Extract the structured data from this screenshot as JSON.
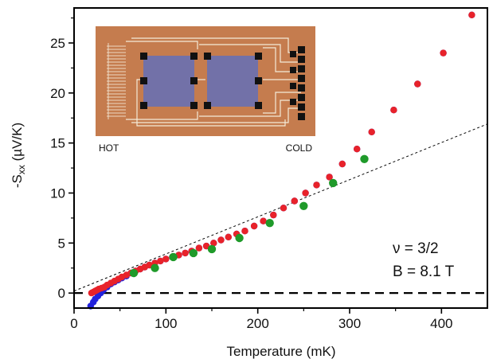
{
  "chart_data": {
    "type": "scatter",
    "xlabel": "Temperature (mK)",
    "ylabel_main": "-S",
    "ylabel_sub": "xx",
    "ylabel_unit": " (µV/K)",
    "xlim": [
      0,
      450
    ],
    "ylim": [
      -1.5,
      28.5
    ],
    "xticks": [
      0,
      100,
      200,
      300,
      400
    ],
    "yticks": [
      0,
      5,
      10,
      15,
      20,
      25
    ],
    "annotations": {
      "nu": "ν = 3/2",
      "field": "B = 8.1 T"
    },
    "inset": {
      "hot_label": "HOT",
      "cold_label": "COLD",
      "colors": {
        "substrate": "#c57c4e",
        "mesa": "#7271a8",
        "contact": "#111111",
        "lead": "#f4ead8"
      }
    },
    "dashed_zero_line": {
      "y": 0
    },
    "linear_fit": {
      "x0": 0,
      "y0": 0.2,
      "x1": 450,
      "y1": 16.9
    },
    "series": [
      {
        "color": "#2222dd",
        "x": [
          18,
          21,
          23,
          26,
          29,
          32,
          36,
          40,
          44,
          48,
          52,
          57,
          62,
          67,
          72,
          77,
          82,
          88,
          94,
          100,
          107,
          114,
          121,
          128,
          136,
          144,
          152,
          160,
          168,
          177,
          186,
          196,
          206,
          217,
          228,
          240,
          252,
          264,
          278,
          292,
          308,
          324,
          348,
          374,
          402,
          433
        ],
        "y": [
          -1.3,
          -0.9,
          -0.6,
          -0.3,
          0.0,
          0.3,
          0.6,
          0.9,
          1.1,
          1.3,
          1.5,
          1.7,
          2.0,
          2.2,
          2.4,
          2.6,
          2.8,
          3.0,
          3.2,
          3.4,
          3.6,
          3.8,
          4.0,
          4.2,
          4.5,
          4.7,
          5.0,
          5.3,
          5.6,
          5.9,
          6.2,
          6.7,
          7.2,
          7.8,
          8.5,
          9.2,
          10.0,
          10.8,
          11.6,
          12.9,
          14.4,
          16.1,
          18.3,
          20.9,
          24.0,
          27.8
        ]
      },
      {
        "color": "#e8222a",
        "x": [
          19,
          21,
          23,
          25,
          27,
          30,
          33,
          36,
          40,
          44,
          48,
          52,
          57,
          62,
          67,
          72,
          77,
          82,
          88,
          94,
          100,
          107,
          114,
          121,
          128,
          136,
          144,
          152,
          160,
          168,
          177,
          186,
          196,
          206,
          217,
          228,
          240,
          252,
          264,
          278,
          292,
          308,
          324,
          348,
          374,
          402,
          433
        ],
        "y": [
          0.0,
          0.1,
          0.2,
          0.3,
          0.4,
          0.5,
          0.6,
          0.8,
          1.0,
          1.2,
          1.4,
          1.6,
          1.8,
          2.0,
          2.2,
          2.4,
          2.6,
          2.8,
          3.0,
          3.2,
          3.4,
          3.6,
          3.8,
          4.0,
          4.2,
          4.5,
          4.7,
          5.0,
          5.3,
          5.6,
          5.9,
          6.2,
          6.7,
          7.2,
          7.8,
          8.5,
          9.2,
          10.0,
          10.8,
          11.6,
          12.9,
          14.4,
          16.1,
          18.3,
          20.9,
          24.0,
          27.8
        ]
      },
      {
        "color": "#1f9a2a",
        "x": [
          65,
          88,
          108,
          130,
          150,
          180,
          213,
          250,
          282,
          316
        ],
        "y": [
          2.0,
          2.5,
          3.6,
          4.0,
          4.4,
          5.5,
          7.0,
          8.7,
          11.0,
          13.4
        ]
      }
    ]
  }
}
